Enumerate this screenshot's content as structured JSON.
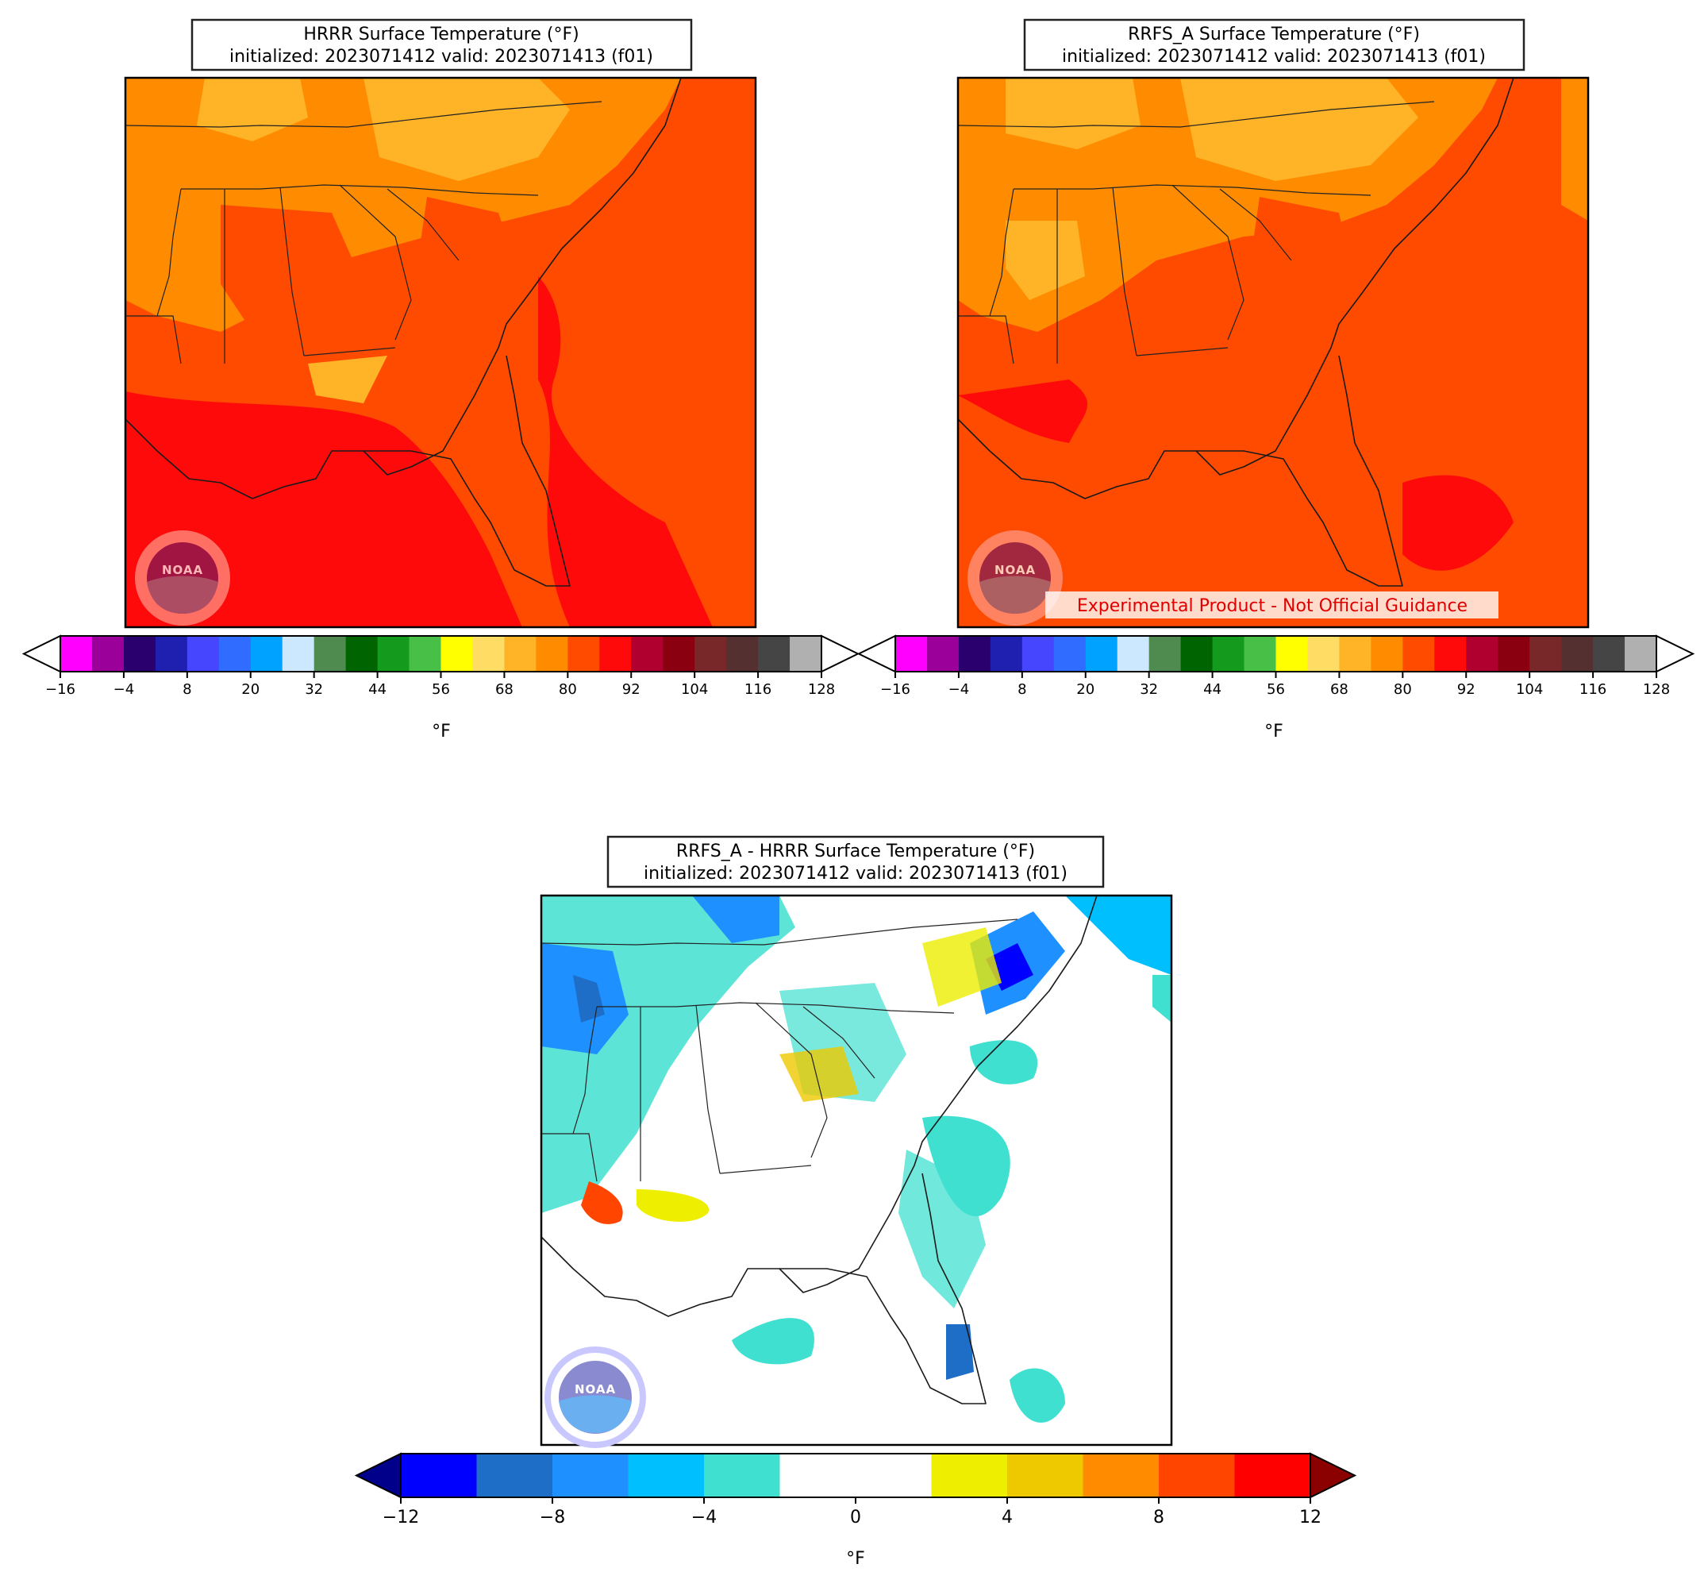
{
  "panels": {
    "hrrr": {
      "title_line1": "HRRR Surface Temperature (°F)",
      "title_line2": "initialized: 2023071412 valid: 2023071413 (f01)"
    },
    "rrfs": {
      "title_line1": "RRFS_A Surface Temperature (°F)",
      "title_line2": "initialized: 2023071412 valid: 2023071413 (f01)",
      "watermark": "Experimental Product - Not Official Guidance"
    },
    "diff": {
      "title_line1": "RRFS_A - HRRR Surface Temperature (°F)",
      "title_line2": "initialized: 2023071412 valid: 2023071413 (f01)"
    }
  },
  "logo_text": "NOAA",
  "temperature_colorbar": {
    "unit_label": "°F",
    "tick_labels": [
      "−16",
      "−4",
      "8",
      "20",
      "32",
      "44",
      "56",
      "68",
      "80",
      "92",
      "104",
      "116",
      "128"
    ],
    "colors": [
      "#ff00ff",
      "#9b009b",
      "#2a006f",
      "#2020b0",
      "#4646ff",
      "#2f6cff",
      "#00a2ff",
      "#cce8ff",
      "#4f8a4f",
      "#006400",
      "#149b1e",
      "#48c048",
      "#ffff00",
      "#ffdc64",
      "#ffb428",
      "#ff8c00",
      "#ff4b00",
      "#ff0a0a",
      "#b00030",
      "#8b0010",
      "#782828",
      "#553030",
      "#454545",
      "#b0b0b0"
    ],
    "under_color": "#ffffff",
    "over_color": "#ffffff"
  },
  "difference_colorbar": {
    "unit_label": "°F",
    "tick_labels": [
      "−12",
      "−8",
      "−4",
      "0",
      "4",
      "8",
      "12"
    ],
    "colors": [
      "#0000ff",
      "#1e6ec8",
      "#1e90ff",
      "#00bfff",
      "#40e0d0",
      "#ffffff",
      "#ffffff",
      "#eeee00",
      "#eec900",
      "#ff8c00",
      "#ff4500",
      "#ff0000"
    ],
    "under_color": "#00008b",
    "over_color": "#8b0000"
  }
}
